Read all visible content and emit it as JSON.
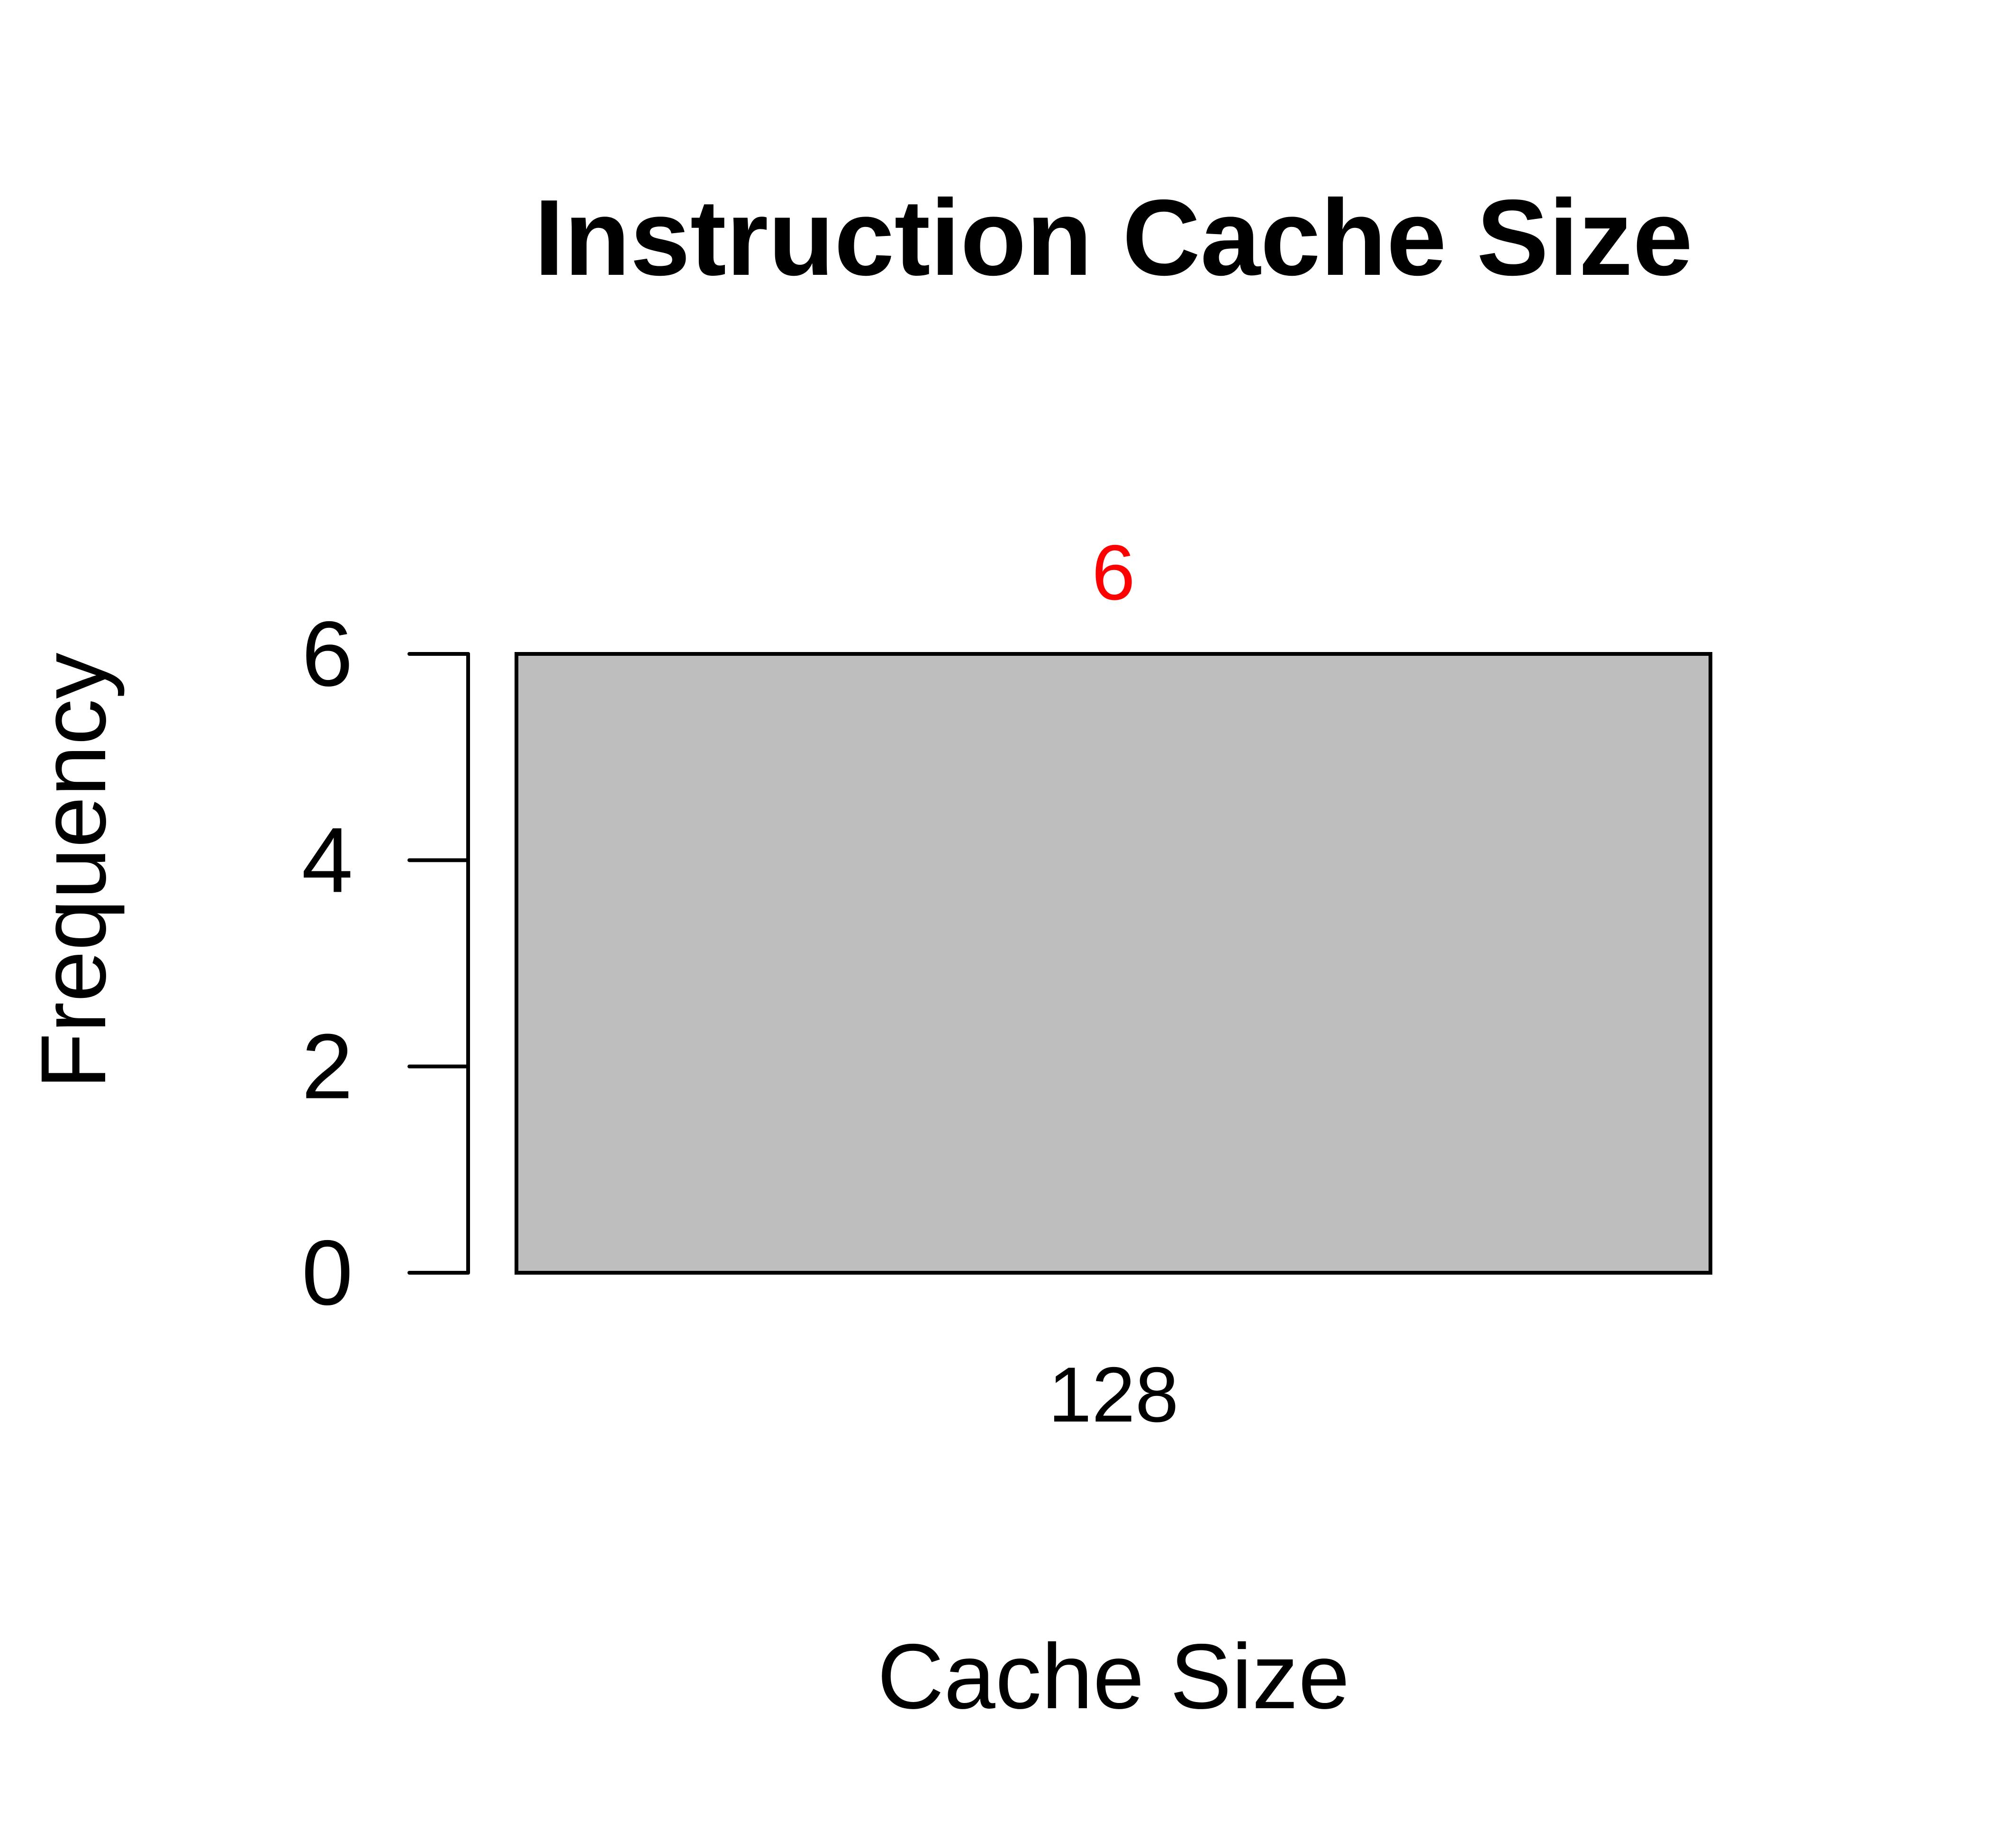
{
  "chart_data": {
    "type": "bar",
    "title": "Instruction Cache Size",
    "xlabel": "Cache Size",
    "ylabel": "Frequency",
    "categories": [
      "128"
    ],
    "values": [
      6
    ],
    "data_labels": [
      "6"
    ],
    "yticks": [
      0,
      2,
      4,
      6
    ],
    "ylim": [
      0,
      6
    ],
    "grid": false,
    "legend": "none",
    "colors": {
      "bar_fill": "#bebebe",
      "bar_stroke": "#000000",
      "data_label": "#ff0000",
      "text": "#000000",
      "background": "#ffffff"
    }
  }
}
